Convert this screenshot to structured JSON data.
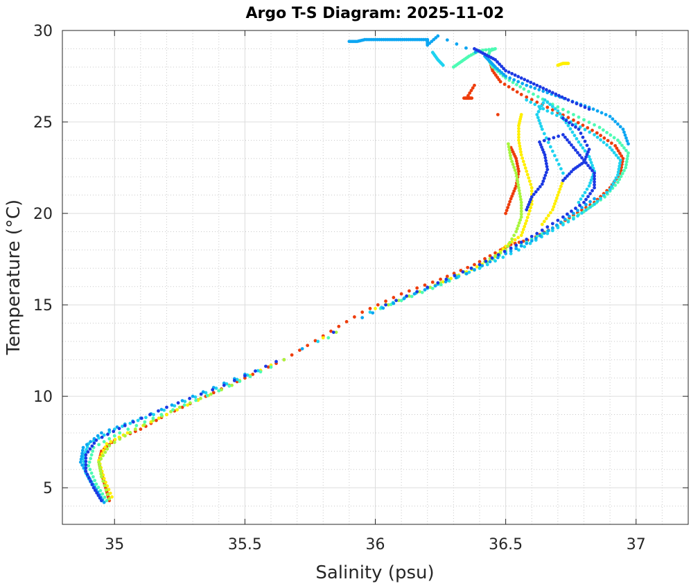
{
  "chart_data": {
    "type": "scatter",
    "title": "Argo T-S Diagram: 2025-11-02",
    "xlabel": "Salinity (psu)",
    "ylabel": "Temperature (°C)",
    "xlim": [
      34.8,
      37.2
    ],
    "ylim": [
      3,
      30
    ],
    "xticks": [
      35,
      35.5,
      36,
      36.5,
      37
    ],
    "xtick_labels": [
      "35",
      "35.5",
      "36",
      "36.5",
      "37"
    ],
    "yticks": [
      5,
      10,
      15,
      20,
      25,
      30
    ],
    "ytick_labels": [
      "5",
      "10",
      "15",
      "20",
      "25",
      "30"
    ],
    "xminor": [
      35.1,
      35.2,
      35.3,
      35.4,
      35.6,
      35.7,
      35.8,
      35.9,
      36.1,
      36.2,
      36.3,
      36.4,
      36.6,
      36.7,
      36.8,
      36.9,
      37.1
    ],
    "yminor": [
      4,
      6,
      7,
      8,
      9,
      11,
      12,
      13,
      14,
      16,
      17,
      18,
      19,
      21,
      22,
      23,
      24,
      26,
      27,
      28,
      29
    ],
    "grid": true,
    "minor_grid": true,
    "legend": "none",
    "series": [
      {
        "color": "#ee3d0c",
        "points": [
          [
            34.98,
            4.3
          ],
          [
            34.97,
            4.8
          ],
          [
            34.96,
            5.3
          ],
          [
            34.95,
            5.8
          ],
          [
            34.94,
            6.4
          ],
          [
            34.95,
            7.0
          ],
          [
            35.0,
            7.6
          ],
          [
            35.1,
            8.2
          ],
          [
            35.2,
            9.0
          ],
          [
            35.35,
            10.0
          ],
          [
            35.5,
            11.0
          ],
          [
            35.65,
            12.0
          ],
          [
            35.8,
            13.3
          ],
          [
            35.95,
            14.6
          ],
          [
            36.1,
            15.6
          ],
          [
            36.25,
            16.4
          ],
          [
            36.38,
            17.2
          ],
          [
            36.48,
            18.0
          ],
          [
            36.52,
            18.3
          ],
          [
            36.6,
            18.6
          ],
          [
            36.68,
            19.2
          ],
          [
            36.76,
            19.9
          ],
          [
            36.84,
            20.6
          ],
          [
            36.9,
            21.4
          ],
          [
            36.94,
            22.2
          ],
          [
            36.95,
            23.0
          ],
          [
            36.92,
            23.7
          ],
          [
            36.85,
            24.4
          ],
          [
            36.76,
            25.1
          ],
          [
            36.66,
            25.8
          ],
          [
            36.56,
            26.5
          ],
          [
            36.48,
            27.2
          ],
          [
            36.45,
            27.8
          ],
          [
            36.44,
            28.3
          ],
          [
            36.5,
            20.0
          ],
          [
            36.52,
            20.8
          ],
          [
            36.54,
            21.5
          ],
          [
            36.55,
            22.3
          ],
          [
            36.54,
            23.0
          ],
          [
            36.52,
            23.6
          ],
          [
            36.36,
            26.3
          ],
          [
            36.34,
            26.3
          ],
          [
            36.37,
            26.3
          ],
          [
            36.35,
            26.3
          ],
          [
            36.38,
            27.0
          ],
          [
            36.47,
            25.4
          ]
        ]
      },
      {
        "color": "#ffef00",
        "points": [
          [
            34.99,
            4.5
          ],
          [
            34.96,
            5.5
          ],
          [
            34.94,
            6.5
          ],
          [
            34.97,
            7.4
          ],
          [
            35.05,
            8.0
          ],
          [
            35.2,
            9.0
          ],
          [
            35.4,
            10.3
          ],
          [
            35.6,
            11.7
          ],
          [
            35.8,
            13.2
          ],
          [
            36.0,
            14.8
          ],
          [
            36.2,
            15.9
          ],
          [
            36.35,
            16.8
          ],
          [
            36.45,
            17.5
          ],
          [
            36.5,
            18.2
          ],
          [
            36.56,
            18.8
          ],
          [
            36.58,
            19.6
          ],
          [
            36.6,
            20.5
          ],
          [
            36.6,
            21.4
          ],
          [
            36.58,
            22.3
          ],
          [
            36.56,
            23.2
          ],
          [
            36.55,
            24.0
          ],
          [
            36.55,
            24.8
          ],
          [
            36.56,
            25.4
          ],
          [
            36.64,
            19.4
          ],
          [
            36.68,
            20.2
          ],
          [
            36.7,
            21.0
          ],
          [
            36.72,
            21.8
          ],
          [
            36.7,
            28.1
          ],
          [
            36.72,
            28.2
          ],
          [
            36.74,
            28.2
          ]
        ]
      },
      {
        "color": "#a8f53d",
        "points": [
          [
            34.98,
            4.4
          ],
          [
            34.95,
            5.6
          ],
          [
            34.94,
            6.4
          ],
          [
            34.98,
            7.3
          ],
          [
            35.08,
            8.2
          ],
          [
            35.25,
            9.4
          ],
          [
            35.45,
            10.6
          ],
          [
            35.65,
            12.0
          ],
          [
            35.85,
            13.5
          ],
          [
            36.05,
            15.0
          ],
          [
            36.25,
            16.2
          ],
          [
            36.4,
            17.2
          ],
          [
            36.5,
            18.0
          ],
          [
            36.54,
            19.0
          ],
          [
            36.56,
            19.8
          ],
          [
            36.56,
            20.6
          ],
          [
            36.55,
            21.4
          ],
          [
            36.54,
            22.2
          ],
          [
            36.52,
            23.0
          ],
          [
            36.51,
            23.8
          ]
        ]
      },
      {
        "color": "#4dfbb4",
        "points": [
          [
            34.97,
            4.3
          ],
          [
            34.93,
            5.2
          ],
          [
            34.9,
            6.2
          ],
          [
            34.92,
            7.2
          ],
          [
            35.02,
            8.0
          ],
          [
            35.18,
            9.0
          ],
          [
            35.4,
            10.3
          ],
          [
            35.6,
            11.6
          ],
          [
            35.82,
            13.2
          ],
          [
            36.02,
            14.8
          ],
          [
            36.22,
            15.9
          ],
          [
            36.38,
            16.9
          ],
          [
            36.5,
            17.9
          ],
          [
            36.6,
            18.6
          ],
          [
            36.7,
            19.3
          ],
          [
            36.8,
            20.1
          ],
          [
            36.88,
            20.9
          ],
          [
            36.93,
            21.7
          ],
          [
            36.96,
            22.5
          ],
          [
            36.97,
            23.3
          ],
          [
            36.93,
            24.0
          ],
          [
            36.86,
            24.7
          ],
          [
            36.76,
            25.4
          ],
          [
            36.66,
            26.1
          ],
          [
            36.57,
            26.8
          ],
          [
            36.5,
            27.4
          ],
          [
            36.45,
            28.0
          ],
          [
            36.43,
            28.5
          ],
          [
            36.44,
            28.9
          ],
          [
            36.46,
            29.0
          ],
          [
            36.4,
            28.9
          ],
          [
            36.36,
            28.6
          ],
          [
            36.33,
            28.3
          ],
          [
            36.3,
            28.0
          ]
        ]
      },
      {
        "color": "#1ed3f0",
        "points": [
          [
            34.95,
            4.3
          ],
          [
            34.92,
            5.0
          ],
          [
            34.89,
            5.8
          ],
          [
            34.88,
            6.6
          ],
          [
            34.9,
            7.4
          ],
          [
            35.0,
            8.2
          ],
          [
            35.15,
            9.0
          ],
          [
            35.35,
            10.2
          ],
          [
            35.55,
            11.4
          ],
          [
            35.78,
            13.0
          ],
          [
            35.98,
            14.6
          ],
          [
            36.2,
            15.9
          ],
          [
            36.4,
            17.0
          ],
          [
            36.55,
            18.0
          ],
          [
            36.66,
            18.9
          ],
          [
            36.76,
            19.7
          ],
          [
            36.84,
            20.5
          ],
          [
            36.9,
            21.3
          ],
          [
            36.93,
            22.1
          ],
          [
            36.94,
            22.9
          ],
          [
            36.9,
            23.6
          ],
          [
            36.84,
            24.3
          ],
          [
            36.75,
            25.0
          ],
          [
            36.66,
            25.6
          ],
          [
            36.58,
            26.2
          ],
          [
            36.78,
            20.6
          ],
          [
            36.82,
            21.5
          ],
          [
            36.84,
            22.3
          ],
          [
            36.82,
            23.1
          ],
          [
            36.78,
            23.9
          ],
          [
            36.74,
            24.8
          ],
          [
            36.7,
            25.6
          ],
          [
            36.65,
            26.2
          ],
          [
            36.62,
            25.4
          ],
          [
            36.64,
            24.6
          ],
          [
            36.68,
            23.4
          ],
          [
            36.72,
            22.2
          ],
          [
            36.22,
            28.8
          ],
          [
            36.24,
            28.4
          ],
          [
            36.26,
            28.1
          ]
        ]
      },
      {
        "color": "#0da6f2",
        "points": [
          [
            34.96,
            4.2
          ],
          [
            34.93,
            4.9
          ],
          [
            34.9,
            5.6
          ],
          [
            34.87,
            6.4
          ],
          [
            34.88,
            7.2
          ],
          [
            34.95,
            8.0
          ],
          [
            35.1,
            8.8
          ],
          [
            35.3,
            10.0
          ],
          [
            35.5,
            11.2
          ],
          [
            35.72,
            12.6
          ],
          [
            35.95,
            14.3
          ],
          [
            36.15,
            15.6
          ],
          [
            36.35,
            16.7
          ],
          [
            36.5,
            17.8
          ],
          [
            36.6,
            18.5
          ],
          [
            36.68,
            19.2
          ],
          [
            36.76,
            20.0
          ],
          [
            36.84,
            20.8
          ],
          [
            35.9,
            29.4
          ],
          [
            35.93,
            29.4
          ],
          [
            35.96,
            29.5
          ],
          [
            36.0,
            29.5
          ],
          [
            36.04,
            29.5
          ],
          [
            36.08,
            29.5
          ],
          [
            36.12,
            29.5
          ],
          [
            36.16,
            29.5
          ],
          [
            36.2,
            29.5
          ],
          [
            36.2,
            29.2
          ],
          [
            36.24,
            29.7
          ],
          [
            36.42,
            28.6
          ],
          [
            36.44,
            28.3
          ],
          [
            36.46,
            28.0
          ],
          [
            36.5,
            27.5
          ],
          [
            36.58,
            27.0
          ],
          [
            36.66,
            26.6
          ],
          [
            36.74,
            26.2
          ],
          [
            36.82,
            25.8
          ],
          [
            36.9,
            25.3
          ],
          [
            36.95,
            24.6
          ],
          [
            36.97,
            23.8
          ]
        ]
      },
      {
        "color": "#1c39e3",
        "points": [
          [
            34.95,
            4.3
          ],
          [
            34.92,
            5.0
          ],
          [
            34.89,
            5.9
          ],
          [
            34.89,
            6.8
          ],
          [
            34.93,
            7.6
          ],
          [
            35.04,
            8.4
          ],
          [
            35.2,
            9.4
          ],
          [
            35.42,
            10.6
          ],
          [
            35.62,
            11.9
          ],
          [
            35.84,
            13.5
          ],
          [
            36.04,
            15.0
          ],
          [
            36.24,
            16.2
          ],
          [
            36.4,
            17.2
          ],
          [
            36.52,
            18.1
          ],
          [
            36.62,
            18.9
          ],
          [
            36.72,
            19.8
          ],
          [
            36.8,
            20.6
          ],
          [
            36.84,
            21.4
          ],
          [
            36.84,
            22.2
          ],
          [
            36.8,
            22.9
          ],
          [
            36.76,
            23.6
          ],
          [
            36.72,
            24.3
          ],
          [
            36.63,
            23.9
          ],
          [
            36.65,
            23.2
          ],
          [
            36.66,
            22.4
          ],
          [
            36.64,
            21.6
          ],
          [
            36.6,
            20.9
          ],
          [
            36.58,
            20.2
          ],
          [
            36.72,
            21.8
          ],
          [
            36.76,
            22.4
          ],
          [
            36.8,
            22.8
          ],
          [
            36.82,
            23.5
          ],
          [
            36.78,
            24.6
          ],
          [
            36.72,
            25.2
          ],
          [
            36.38,
            29.0
          ],
          [
            36.42,
            28.7
          ],
          [
            36.46,
            28.4
          ],
          [
            36.5,
            27.8
          ],
          [
            36.56,
            27.4
          ],
          [
            36.62,
            27.0
          ],
          [
            36.68,
            26.6
          ],
          [
            36.74,
            26.2
          ],
          [
            36.82,
            25.7
          ]
        ]
      }
    ]
  }
}
